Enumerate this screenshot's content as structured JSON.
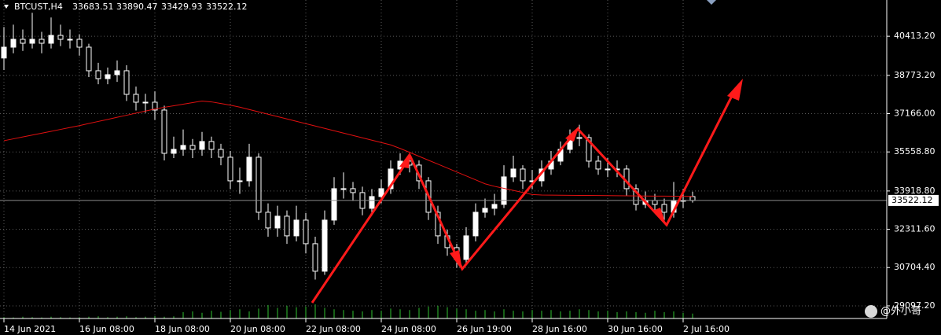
{
  "chart_data": {
    "type": "candlestick",
    "symbol": "BTCUST,H4",
    "categories": [
      "14 Jun 2021",
      null,
      null,
      null,
      null,
      null,
      null,
      null,
      "16 Jun 08:00",
      null,
      null,
      null,
      null,
      null,
      null,
      null,
      "18 Jun 08:00",
      null,
      null,
      null,
      null,
      null,
      null,
      null,
      "20 Jun 08:00",
      null,
      null,
      null,
      null,
      null,
      null,
      null,
      "22 Jun 08:00",
      null,
      null,
      null,
      null,
      null,
      null,
      null,
      "24 Jun 08:00",
      null,
      null,
      null,
      null,
      null,
      null,
      null,
      "26 Jun 19:00",
      null,
      null,
      null,
      null,
      null,
      null,
      null,
      "28 Jun 16:00",
      null,
      null,
      null,
      null,
      null,
      null,
      null,
      "30 Jun 16:00",
      null,
      null,
      null,
      null,
      null,
      null,
      null,
      "2 Jul 16:00",
      null
    ],
    "open": [
      39500,
      39956,
      40286,
      40121,
      40286,
      40121,
      40451,
      40286,
      40286,
      39956,
      38966,
      38636,
      38801,
      38966,
      37976,
      37646,
      37646,
      37316,
      35501,
      35666,
      35831,
      35666,
      35996,
      35666,
      35336,
      34346,
      34346,
      35336,
      33026,
      32366,
      32861,
      32036,
      32696,
      31706,
      30551,
      32696,
      34016,
      34016,
      33851,
      33191,
      33686,
      34016,
      34841,
      35171,
      35006,
      34346,
      33026,
      32036,
      31541,
      31046,
      32036,
      33026,
      33191,
      33356,
      34511,
      34841,
      34346,
      34346,
      34841,
      35171,
      35666,
      36161,
      36161,
      35171,
      34841,
      34841,
      34841,
      34016,
      33356,
      33521,
      33356,
      33026,
      33521,
      33683.51
    ],
    "high": [
      40800,
      40900,
      40700,
      41400,
      40600,
      41200,
      40900,
      40700,
      40500,
      40100,
      39300,
      39100,
      39400,
      39200,
      38300,
      38000,
      38100,
      37500,
      36200,
      36500,
      36100,
      36400,
      36200,
      35900,
      35600,
      34900,
      35900,
      35500,
      33400,
      33300,
      33100,
      33300,
      33000,
      32000,
      33100,
      34500,
      34700,
      34300,
      34100,
      34000,
      34400,
      35200,
      35500,
      35500,
      35200,
      34500,
      33300,
      32300,
      31700,
      32400,
      33400,
      33600,
      33800,
      35000,
      35400,
      35000,
      34800,
      35200,
      35600,
      36000,
      36500,
      36700,
      36300,
      35400,
      35300,
      35200,
      35000,
      34200,
      33900,
      33800,
      33600,
      34300,
      34000,
      33890.47
    ],
    "low": [
      39000,
      39700,
      39800,
      39900,
      39700,
      39900,
      40000,
      39900,
      39600,
      38700,
      38400,
      38400,
      38500,
      37700,
      37300,
      37200,
      36900,
      35200,
      35300,
      35400,
      35300,
      35400,
      35300,
      35000,
      34000,
      33800,
      34100,
      32700,
      32000,
      32000,
      31700,
      31800,
      31300,
      30200,
      30400,
      32500,
      33600,
      33500,
      32900,
      33000,
      33400,
      33800,
      34600,
      34700,
      34000,
      32700,
      31700,
      31200,
      30700,
      30900,
      31800,
      32800,
      32900,
      33200,
      34300,
      34000,
      34000,
      34100,
      34600,
      35000,
      35500,
      35800,
      34900,
      34600,
      34500,
      34500,
      33700,
      33100,
      33200,
      33000,
      32700,
      32800,
      33200,
      33429.93
    ],
    "close": [
      39956,
      40286,
      40121,
      40286,
      40121,
      40451,
      40286,
      40286,
      39956,
      38966,
      38636,
      38801,
      38966,
      37976,
      37646,
      37646,
      37316,
      35501,
      35666,
      35831,
      35666,
      35996,
      35666,
      35336,
      34346,
      34346,
      35336,
      33026,
      32366,
      32861,
      32036,
      32696,
      31706,
      30551,
      32696,
      34016,
      34016,
      33851,
      33191,
      33686,
      34016,
      34841,
      35171,
      35006,
      34346,
      33026,
      32036,
      31541,
      31046,
      32036,
      33026,
      33191,
      33356,
      34511,
      34841,
      34346,
      34346,
      34841,
      35171,
      35666,
      36161,
      36161,
      35171,
      34841,
      34841,
      34841,
      34016,
      33356,
      33521,
      33356,
      33026,
      33521,
      33521,
      33522.12
    ],
    "ma": {
      "color": "#e01010",
      "values": [
        36029,
        36108,
        36187,
        36267,
        36346,
        36425,
        36504,
        36583,
        36663,
        36752,
        36838,
        36923,
        37012,
        37098,
        37187,
        37273,
        37359,
        37432,
        37498,
        37564,
        37630,
        37696,
        37659,
        37590,
        37521,
        37438,
        37339,
        37240,
        37141,
        37042,
        36943,
        36844,
        36745,
        36646,
        36547,
        36448,
        36349,
        36250,
        36151,
        36052,
        35953,
        35854,
        35706,
        35541,
        35376,
        35211,
        35046,
        34881,
        34716,
        34551,
        34386,
        34221,
        34115,
        34029,
        33943,
        33858,
        33772,
        33749,
        33745,
        33742,
        33738,
        33735,
        33731,
        33728,
        33724,
        33720,
        33717,
        33713,
        33710,
        33706,
        33703,
        33699,
        33696,
        33692
      ]
    },
    "volume": {
      "color": "#2fc22f",
      "ylim": [
        0,
        100
      ],
      "values": [
        4,
        3,
        5,
        4,
        3,
        5,
        4,
        3,
        4,
        5,
        6,
        4,
        5,
        6,
        4,
        5,
        7,
        5,
        6,
        18,
        20,
        16,
        22,
        19,
        24,
        26,
        20,
        28,
        38,
        30,
        36,
        32,
        34,
        40,
        30,
        26,
        24,
        22,
        20,
        24,
        22,
        28,
        26,
        24,
        30,
        34,
        36,
        32,
        28,
        26,
        22,
        24,
        20,
        26,
        22,
        20,
        24,
        22,
        24,
        20,
        22,
        26,
        24,
        20,
        22,
        18,
        20,
        18,
        16,
        22,
        18,
        20,
        16,
        14
      ]
    },
    "up_color": "#ffffff",
    "down_color": "#000000",
    "wick_color": "#ffffff",
    "ylim": [
      28567,
      41936
    ],
    "yticks": [
      {
        "value": 29097.2,
        "label": "29097.20"
      },
      {
        "value": 30704.4,
        "label": "30704.40"
      },
      {
        "value": 32311.6,
        "label": "32311.60"
      },
      {
        "value": 33918.8,
        "label": "33918.80"
      },
      {
        "value": 35558.8,
        "label": "35558.80"
      },
      {
        "value": 37166,
        "label": "37166.00"
      },
      {
        "value": 38773.2,
        "label": "38773.20"
      },
      {
        "value": 40413.2,
        "label": "40413.20"
      }
    ],
    "grid": true,
    "watermark": "@外小哥"
  }
}
